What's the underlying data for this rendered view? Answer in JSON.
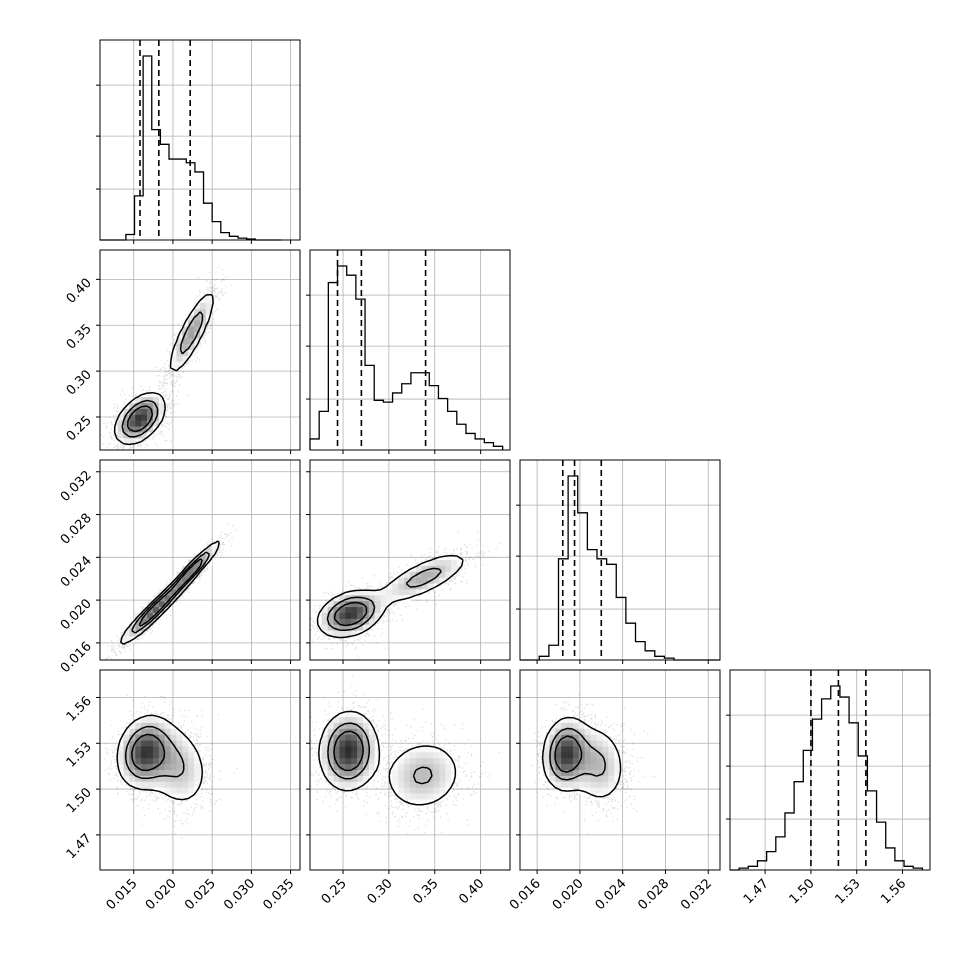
{
  "chart_data": {
    "type": "corner",
    "grid": true,
    "parameters": [
      {
        "ticks": [
          0.015,
          0.02,
          0.025,
          0.03,
          0.035
        ],
        "tick_labels": [
          "0.015",
          "0.020",
          "0.025",
          "0.030",
          "0.035"
        ],
        "range": [
          0.0107,
          0.0362
        ],
        "quantiles": [
          0.0158,
          0.0182,
          0.0222
        ]
      },
      {
        "ticks": [
          0.25,
          0.3,
          0.35,
          0.4
        ],
        "tick_labels": [
          "0.25",
          "0.30",
          "0.35",
          "0.40"
        ],
        "range": [
          0.214,
          0.432
        ],
        "quantiles": [
          0.244,
          0.27,
          0.34
        ]
      },
      {
        "ticks": [
          0.016,
          0.02,
          0.024,
          0.028,
          0.032
        ],
        "tick_labels": [
          "0.016",
          "0.020",
          "0.024",
          "0.028",
          "0.032"
        ],
        "range": [
          0.0144,
          0.0331
        ],
        "quantiles": [
          0.0184,
          0.0195,
          0.022
        ]
      },
      {
        "ticks": [
          1.47,
          1.5,
          1.53,
          1.56
        ],
        "tick_labels": [
          "1.47",
          "1.50",
          "1.53",
          "1.56"
        ],
        "range": [
          1.447,
          1.578
        ],
        "quantiles": [
          1.5,
          1.518,
          1.536
        ]
      }
    ],
    "histograms": [
      {
        "param": 0,
        "bins": [
          0.0107,
          0.0118,
          0.0129,
          0.014,
          0.0151,
          0.0162,
          0.0173,
          0.0184,
          0.0195,
          0.0206,
          0.0217,
          0.0228,
          0.0239,
          0.025,
          0.0261,
          0.0272,
          0.0283,
          0.0294,
          0.0305,
          0.0316,
          0.0327,
          0.0338
        ],
        "counts": [
          0,
          0,
          0,
          0.03,
          0.24,
          1.0,
          0.6,
          0.52,
          0.44,
          0.44,
          0.42,
          0.37,
          0.2,
          0.1,
          0.04,
          0.02,
          0.01,
          0.005,
          0,
          0,
          0
        ]
      },
      {
        "param": 1,
        "bins": [
          0.214,
          0.224,
          0.234,
          0.244,
          0.254,
          0.264,
          0.274,
          0.284,
          0.294,
          0.304,
          0.314,
          0.324,
          0.334,
          0.344,
          0.354,
          0.364,
          0.374,
          0.384,
          0.394,
          0.404,
          0.414,
          0.424
        ],
        "counts": [
          0.06,
          0.21,
          0.91,
          1.0,
          0.95,
          0.82,
          0.46,
          0.27,
          0.26,
          0.31,
          0.36,
          0.42,
          0.42,
          0.35,
          0.28,
          0.21,
          0.14,
          0.09,
          0.06,
          0.04,
          0.02
        ]
      },
      {
        "param": 2,
        "bins": [
          0.0144,
          0.0153,
          0.0162,
          0.0171,
          0.018,
          0.0189,
          0.0198,
          0.0207,
          0.0216,
          0.0225,
          0.0234,
          0.0243,
          0.0252,
          0.0261,
          0.027,
          0.0279,
          0.0288,
          0.0297,
          0.0306,
          0.0315,
          0.0324,
          0.0331
        ],
        "counts": [
          0,
          0,
          0.02,
          0.08,
          0.55,
          1.0,
          0.8,
          0.6,
          0.55,
          0.52,
          0.34,
          0.2,
          0.1,
          0.05,
          0.02,
          0.01,
          0,
          0,
          0,
          0,
          0
        ]
      },
      {
        "param": 3,
        "bins": [
          1.447,
          1.453,
          1.459,
          1.465,
          1.471,
          1.477,
          1.483,
          1.489,
          1.495,
          1.501,
          1.507,
          1.513,
          1.519,
          1.525,
          1.531,
          1.537,
          1.543,
          1.549,
          1.555,
          1.561,
          1.567,
          1.573
        ],
        "counts": [
          0.0,
          0.01,
          0.02,
          0.05,
          0.1,
          0.18,
          0.31,
          0.48,
          0.65,
          0.82,
          0.93,
          1.0,
          0.94,
          0.8,
          0.62,
          0.43,
          0.26,
          0.12,
          0.05,
          0.02,
          0.01
        ]
      }
    ],
    "pairs": [
      {
        "x": 0,
        "y": 1,
        "peaks": [
          {
            "x": 0.0158,
            "y": 0.248,
            "sx": 0.0016,
            "sy": 0.014,
            "rho": 0.45,
            "w": 0.62
          },
          {
            "x": 0.0224,
            "y": 0.342,
            "sx": 0.0016,
            "sy": 0.025,
            "rho": 0.85,
            "w": 0.38
          }
        ]
      },
      {
        "x": 0,
        "y": 2,
        "peaks": [
          {
            "x": 0.0176,
            "y": 0.019,
            "sx": 0.0022,
            "sy": 0.0016,
            "rho": 0.95,
            "w": 0.6
          },
          {
            "x": 0.0225,
            "y": 0.0228,
            "sx": 0.0018,
            "sy": 0.0014,
            "rho": 0.95,
            "w": 0.4
          }
        ]
      },
      {
        "x": 0,
        "y": 3,
        "peaks": [
          {
            "x": 0.0164,
            "y": 1.524,
            "sx": 0.0018,
            "sy": 0.012,
            "rho": 0.15,
            "w": 0.6
          },
          {
            "x": 0.0205,
            "y": 1.515,
            "sx": 0.0022,
            "sy": 0.015,
            "rho": -0.2,
            "w": 0.4
          }
        ]
      },
      {
        "x": 1,
        "y": 2,
        "peaks": [
          {
            "x": 0.258,
            "y": 0.0187,
            "sx": 0.018,
            "sy": 0.0011,
            "rho": 0.3,
            "w": 0.62
          },
          {
            "x": 0.338,
            "y": 0.0221,
            "sx": 0.027,
            "sy": 0.0013,
            "rho": 0.75,
            "w": 0.38
          }
        ]
      },
      {
        "x": 1,
        "y": 3,
        "peaks": [
          {
            "x": 0.256,
            "y": 1.525,
            "sx": 0.016,
            "sy": 0.013,
            "rho": 0.05,
            "w": 0.62
          },
          {
            "x": 0.337,
            "y": 1.509,
            "sx": 0.024,
            "sy": 0.013,
            "rho": 0.1,
            "w": 0.38
          }
        ]
      },
      {
        "x": 2,
        "y": 3,
        "peaks": [
          {
            "x": 0.0187,
            "y": 1.523,
            "sx": 0.0011,
            "sy": 0.012,
            "rho": 0.1,
            "w": 0.6
          },
          {
            "x": 0.0217,
            "y": 1.516,
            "sx": 0.0014,
            "sy": 0.014,
            "rho": -0.1,
            "w": 0.4
          }
        ]
      }
    ]
  }
}
